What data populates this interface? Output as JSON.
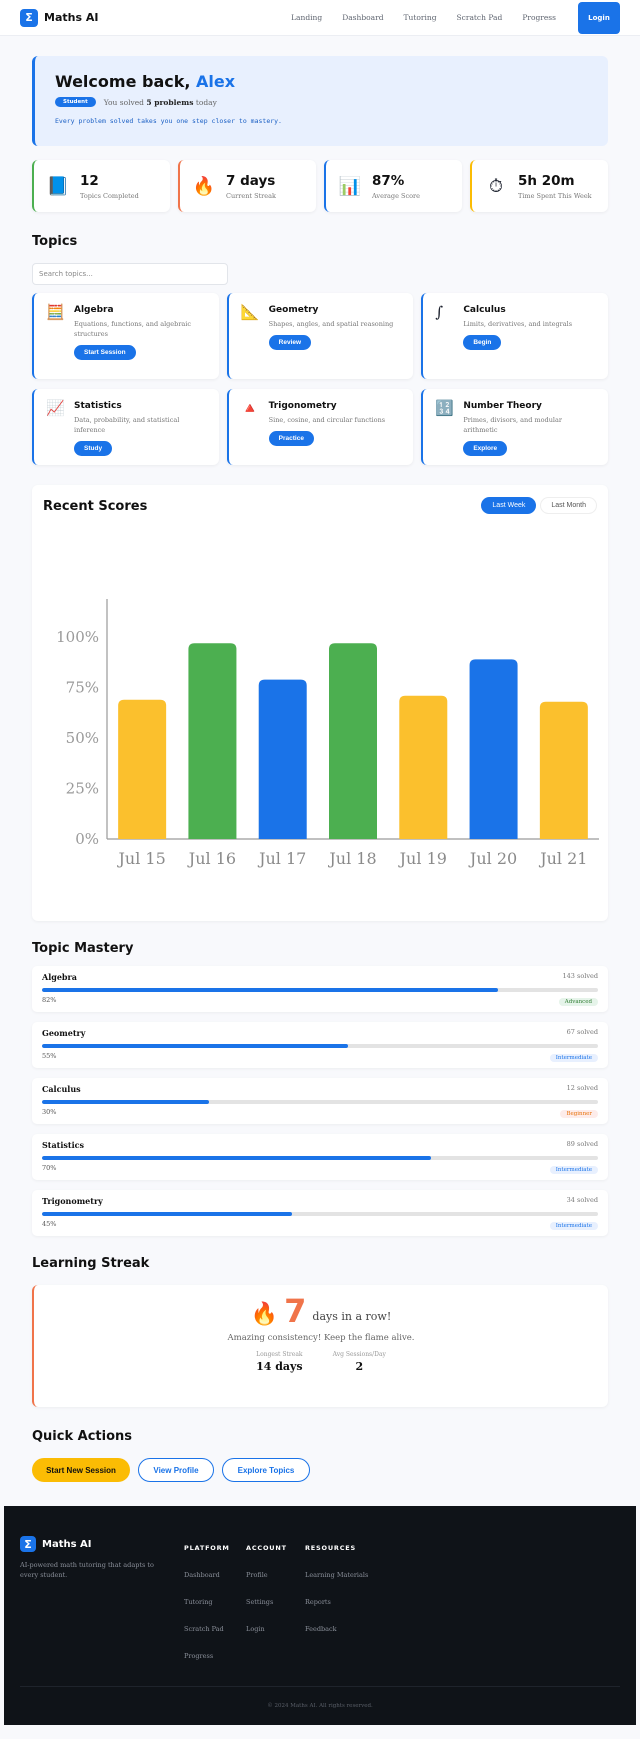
{
  "app": {
    "name": "Maths AI",
    "logo_glyph": "Σ"
  },
  "nav": {
    "items": [
      "Landing",
      "Dashboard",
      "Tutoring",
      "Scratch Pad",
      "Progress"
    ],
    "login": "Login"
  },
  "welcome": {
    "greeting": "Welcome back,",
    "name": "Alex",
    "badge": "Student",
    "solved_prefix": "You solved",
    "solved_count": "5 problems",
    "solved_suffix": "today",
    "motto": "Every problem solved takes you one step closer to mastery."
  },
  "stats": [
    {
      "icon": "book-icon",
      "glyph": "📘",
      "value": "12",
      "label": "Topics Completed",
      "color": "#4caf50"
    },
    {
      "icon": "fire-icon",
      "glyph": "🔥",
      "value": "7 days",
      "label": "Current Streak",
      "color": "#f0744a"
    },
    {
      "icon": "bar-chart-icon",
      "glyph": "📊",
      "value": "87%",
      "label": "Average Score",
      "color": "#1a73e8"
    },
    {
      "icon": "stopwatch-icon",
      "glyph": "⏱",
      "value": "5h 20m",
      "label": "Time Spent This Week",
      "color": "#fbbc04"
    }
  ],
  "topics": {
    "title": "Topics",
    "search_placeholder": "Search topics...",
    "items": [
      {
        "icon": "abacus-icon",
        "glyph": "🧮",
        "name": "Algebra",
        "desc": "Equations, functions, and algebraic structures",
        "button": "Start Session"
      },
      {
        "icon": "triangle-ruler-icon",
        "glyph": "📐",
        "name": "Geometry",
        "desc": "Shapes, angles, and spatial reasoning",
        "button": "Review"
      },
      {
        "icon": "integral-icon",
        "glyph": "∫",
        "name": "Calculus",
        "desc": "Limits, derivatives, and integrals",
        "button": "Begin"
      },
      {
        "icon": "trend-chart-icon",
        "glyph": "📈",
        "name": "Statistics",
        "desc": "Data, probability, and statistical inference",
        "button": "Study"
      },
      {
        "icon": "red-triangle-icon",
        "glyph": "🔺",
        "name": "Trigonometry",
        "desc": "Sine, cosine, and circular functions",
        "button": "Practice"
      },
      {
        "icon": "number-tiles-icon",
        "glyph": "🔢",
        "name": "Number Theory",
        "desc": "Primes, divisors, and modular arithmetic",
        "button": "Explore"
      }
    ]
  },
  "scores": {
    "title": "Recent Scores",
    "tabs": [
      "Last Week",
      "Last Month"
    ]
  },
  "chart_data": {
    "type": "bar",
    "categories": [
      "Jul 15",
      "Jul 16",
      "Jul 17",
      "Jul 18",
      "Jul 19",
      "Jul 20",
      "Jul 21"
    ],
    "values": [
      69,
      97,
      79,
      97,
      71,
      89,
      68
    ],
    "colors": [
      "#fbc02d",
      "#4caf50",
      "#1a73e8",
      "#4caf50",
      "#fbc02d",
      "#1a73e8",
      "#fbc02d"
    ],
    "ytick_labels": [
      "0%",
      "25%",
      "50%",
      "75%",
      "100%"
    ],
    "ylim": [
      0,
      113
    ],
    "grid": false
  },
  "mastery": {
    "title": "Topic Mastery",
    "items": [
      {
        "name": "Algebra",
        "solved": "143 solved",
        "percent": 82,
        "percent_label": "82%",
        "level": "Advanced",
        "level_class": "adv"
      },
      {
        "name": "Geometry",
        "solved": "67 solved",
        "percent": 55,
        "percent_label": "55%",
        "level": "Intermediate",
        "level_class": "int"
      },
      {
        "name": "Calculus",
        "solved": "12 solved",
        "percent": 30,
        "percent_label": "30%",
        "level": "Beginner",
        "level_class": "beg"
      },
      {
        "name": "Statistics",
        "solved": "89 solved",
        "percent": 70,
        "percent_label": "70%",
        "level": "Intermediate",
        "level_class": "int"
      },
      {
        "name": "Trigonometry",
        "solved": "34 solved",
        "percent": 45,
        "percent_label": "45%",
        "level": "Intermediate",
        "level_class": "int"
      }
    ]
  },
  "streak": {
    "title": "Learning Streak",
    "number": "7",
    "suffix": "days in a row!",
    "message": "Amazing consistency! Keep the flame alive.",
    "longest_label": "Longest Streak",
    "longest_value": "14 days",
    "avg_label": "Avg Sessions/Day",
    "avg_value": "2"
  },
  "quick_actions": {
    "title": "Quick Actions",
    "buttons": [
      "Start New Session",
      "View Profile",
      "Explore Topics"
    ]
  },
  "footer": {
    "desc": "AI-powered math tutoring that adapts to every student.",
    "columns": [
      {
        "title": "PLATFORM",
        "links": [
          "Dashboard",
          "Tutoring",
          "Scratch Pad",
          "Progress"
        ]
      },
      {
        "title": "ACCOUNT",
        "links": [
          "Profile",
          "Settings",
          "Login"
        ]
      },
      {
        "title": "RESOURCES",
        "links": [
          "Learning Materials",
          "Reports",
          "Feedback"
        ]
      }
    ],
    "copyright": "© 2024 Maths AI. All rights reserved."
  }
}
